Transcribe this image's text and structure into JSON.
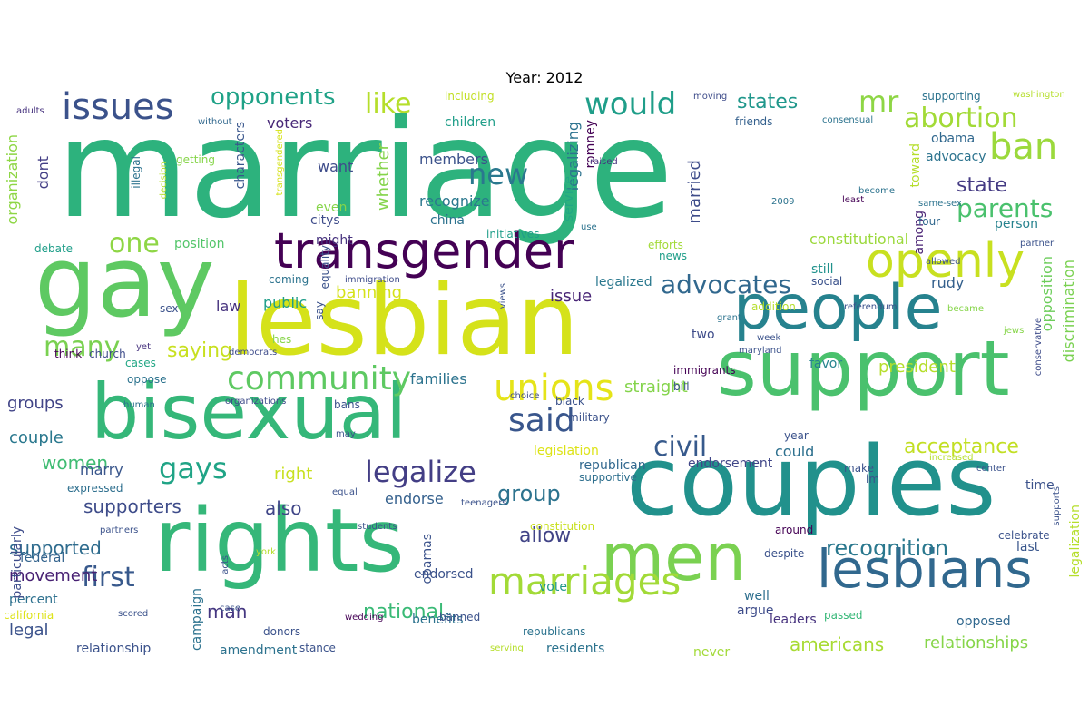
{
  "title": "Year: 2012",
  "words": [
    {
      "text": "marriage",
      "color": "#2db27d"
    },
    {
      "text": "gay",
      "color": "#5ec962"
    },
    {
      "text": "lesbian",
      "color": "#d5e21a"
    },
    {
      "text": "couples",
      "color": "#21918c"
    },
    {
      "text": "rights",
      "color": "#35b779"
    },
    {
      "text": "bisexual",
      "color": "#35b779"
    },
    {
      "text": "support",
      "color": "#4ac16d"
    },
    {
      "text": "people",
      "color": "#26828e"
    },
    {
      "text": "transgender",
      "color": "#440154"
    },
    {
      "text": "men",
      "color": "#7ad151"
    },
    {
      "text": "lesbians",
      "color": "#31688e"
    },
    {
      "text": "openly",
      "color": "#c8e020"
    },
    {
      "text": "marriages",
      "color": "#a2da37"
    },
    {
      "text": "unions",
      "color": "#e5e419"
    },
    {
      "text": "issues",
      "color": "#3b528b"
    },
    {
      "text": "community",
      "color": "#5ec962"
    },
    {
      "text": "ban",
      "color": "#9bd93c"
    },
    {
      "text": "would",
      "color": "#1f9e89"
    },
    {
      "text": "said",
      "color": "#39568c"
    },
    {
      "text": "gays",
      "color": "#20a486"
    },
    {
      "text": "legalize",
      "color": "#433e85"
    },
    {
      "text": "abortion",
      "color": "#a2da37"
    },
    {
      "text": "civil",
      "color": "#375a8c"
    },
    {
      "text": "first",
      "color": "#38598c"
    },
    {
      "text": "many",
      "color": "#7ad151"
    },
    {
      "text": "like",
      "color": "#b5de2b"
    },
    {
      "text": "new",
      "color": "#2a788e"
    },
    {
      "text": "mr",
      "color": "#8ed645"
    },
    {
      "text": "advocates",
      "color": "#31688e"
    },
    {
      "text": "one",
      "color": "#8ed645"
    },
    {
      "text": "parents",
      "color": "#4ac16d"
    },
    {
      "text": "opponents",
      "color": "#1fa287"
    },
    {
      "text": "recognition",
      "color": "#2a788e"
    },
    {
      "text": "acceptance",
      "color": "#c2df23"
    },
    {
      "text": "national",
      "color": "#3aba76"
    },
    {
      "text": "saying",
      "color": "#c8e020"
    },
    {
      "text": "states",
      "color": "#1f978b"
    },
    {
      "text": "state",
      "color": "#443a83"
    },
    {
      "text": "americans",
      "color": "#a8db34"
    },
    {
      "text": "relationships",
      "color": "#86d549"
    },
    {
      "text": "group",
      "color": "#2c738e"
    },
    {
      "text": "allow",
      "color": "#414487"
    },
    {
      "text": "supporters",
      "color": "#3e4c8a"
    },
    {
      "text": "supported",
      "color": "#2f6c8e"
    },
    {
      "text": "women",
      "color": "#3fbc73"
    },
    {
      "text": "man",
      "color": "#453781"
    },
    {
      "text": "movement",
      "color": "#482173"
    },
    {
      "text": "constitutional",
      "color": "#9bd93c"
    },
    {
      "text": "president",
      "color": "#b5de2b"
    },
    {
      "text": "right",
      "color": "#c8e020"
    },
    {
      "text": "banning",
      "color": "#d5e21a"
    },
    {
      "text": "issue",
      "color": "#482576"
    },
    {
      "text": "families",
      "color": "#2c738e"
    },
    {
      "text": "straight",
      "color": "#84d44b"
    },
    {
      "text": "endorse",
      "color": "#34608d"
    },
    {
      "text": "could",
      "color": "#2d708e"
    },
    {
      "text": "also",
      "color": "#404688"
    },
    {
      "text": "legal",
      "color": "#3b528b"
    },
    {
      "text": "couple",
      "color": "#2a788e"
    },
    {
      "text": "groups",
      "color": "#414487"
    },
    {
      "text": "marry",
      "color": "#39568c"
    },
    {
      "text": "law",
      "color": "#46327e"
    },
    {
      "text": "public",
      "color": "#1f9e89"
    },
    {
      "text": "married",
      "color": "#3e4c8a"
    },
    {
      "text": "members",
      "color": "#3b528b"
    },
    {
      "text": "recognize",
      "color": "#2a788e"
    },
    {
      "text": "whether",
      "color": "#84d44b"
    },
    {
      "text": "want",
      "color": "#3e4c8a"
    },
    {
      "text": "voters",
      "color": "#482878"
    },
    {
      "text": "position",
      "color": "#52c569"
    },
    {
      "text": "opposition",
      "color": "#6ccd5a"
    },
    {
      "text": "discrimination",
      "color": "#7ad151"
    },
    {
      "text": "legalization",
      "color": "#b5de2b"
    },
    {
      "text": "organization",
      "color": "#8ed645"
    },
    {
      "text": "dont",
      "color": "#433e85"
    },
    {
      "text": "rudy",
      "color": "#34608d"
    },
    {
      "text": "obama",
      "color": "#31688e"
    },
    {
      "text": "advocacy",
      "color": "#2c738e"
    },
    {
      "text": "toward",
      "color": "#b5de2b"
    },
    {
      "text": "among",
      "color": "#482173"
    },
    {
      "text": "person",
      "color": "#26828e"
    },
    {
      "text": "favor",
      "color": "#25838e"
    },
    {
      "text": "still",
      "color": "#20928c"
    },
    {
      "text": "two",
      "color": "#3e4c8a"
    },
    {
      "text": "time",
      "color": "#3b528b"
    },
    {
      "text": "last",
      "color": "#39568c"
    },
    {
      "text": "well",
      "color": "#2e6f8e"
    },
    {
      "text": "argue",
      "color": "#3e4c8a"
    },
    {
      "text": "opposed",
      "color": "#31688e"
    },
    {
      "text": "leaders",
      "color": "#46327e"
    },
    {
      "text": "passed",
      "color": "#37b878"
    },
    {
      "text": "endorsement",
      "color": "#404688"
    },
    {
      "text": "children",
      "color": "#1f9e89"
    },
    {
      "text": "including",
      "color": "#c2df23"
    },
    {
      "text": "legalizing",
      "color": "#2c728e"
    },
    {
      "text": "romney",
      "color": "#440154"
    },
    {
      "text": "service",
      "color": "#22a785"
    },
    {
      "text": "china",
      "color": "#2c728e"
    },
    {
      "text": "citys",
      "color": "#3e4c8a"
    },
    {
      "text": "might",
      "color": "#46327e"
    },
    {
      "text": "even",
      "color": "#86d549"
    },
    {
      "text": "characters",
      "color": "#39568c"
    },
    {
      "text": "legalized",
      "color": "#2a788e"
    },
    {
      "text": "federal",
      "color": "#33638d"
    },
    {
      "text": "percent",
      "color": "#2d708e"
    },
    {
      "text": "endorsed",
      "color": "#3b528b"
    },
    {
      "text": "vote",
      "color": "#1f978b"
    },
    {
      "text": "obamas",
      "color": "#3b528b"
    },
    {
      "text": "benefits",
      "color": "#2c738e"
    },
    {
      "text": "relationship",
      "color": "#3b528b"
    },
    {
      "text": "amendment",
      "color": "#2c728e"
    },
    {
      "text": "residents",
      "color": "#2c738e"
    },
    {
      "text": "never",
      "color": "#a2da37"
    },
    {
      "text": "republican",
      "color": "#31688e"
    },
    {
      "text": "legislation",
      "color": "#dde318"
    },
    {
      "text": "supportive",
      "color": "#2e6f8e"
    },
    {
      "text": "constitution",
      "color": "#c8e020"
    },
    {
      "text": "republicans",
      "color": "#2c738e"
    },
    {
      "text": "banned",
      "color": "#3b528b"
    },
    {
      "text": "campaign",
      "color": "#2c728e"
    },
    {
      "text": "california",
      "color": "#dde318"
    },
    {
      "text": "scored",
      "color": "#3b528b"
    },
    {
      "text": "partners",
      "color": "#3b528b"
    },
    {
      "text": "expressed",
      "color": "#2e6f8e"
    },
    {
      "text": "particularly",
      "color": "#3e4c8a"
    },
    {
      "text": "human",
      "color": "#2c738e"
    },
    {
      "text": "oppose",
      "color": "#2c738e"
    },
    {
      "text": "think",
      "color": "#440154"
    },
    {
      "text": "yet",
      "color": "#46327e"
    },
    {
      "text": "church",
      "color": "#3e4c8a"
    },
    {
      "text": "cases",
      "color": "#22a785"
    },
    {
      "text": "sex",
      "color": "#3b528b"
    },
    {
      "text": "debate",
      "color": "#1f9e89"
    },
    {
      "text": "adults",
      "color": "#46327e"
    },
    {
      "text": "without",
      "color": "#31688e"
    },
    {
      "text": "getting",
      "color": "#86d549"
    },
    {
      "text": "illegal",
      "color": "#2c738e"
    },
    {
      "text": "decision",
      "color": "#b5de2b"
    },
    {
      "text": "transgendered",
      "color": "#d5e21a"
    },
    {
      "text": "raised",
      "color": "#46327e"
    },
    {
      "text": "moving",
      "color": "#3e4c8a"
    },
    {
      "text": "friends",
      "color": "#34608d"
    },
    {
      "text": "supporting",
      "color": "#2c738e"
    },
    {
      "text": "washington",
      "color": "#b5de2b"
    },
    {
      "text": "consensual",
      "color": "#2c738e"
    },
    {
      "text": "become",
      "color": "#2c738e"
    },
    {
      "text": "least",
      "color": "#440154"
    },
    {
      "text": "same-sex",
      "color": "#2c738e"
    },
    {
      "text": "four",
      "color": "#31688e"
    },
    {
      "text": "2009",
      "color": "#2c738e"
    },
    {
      "text": "use",
      "color": "#2c738e"
    },
    {
      "text": "initiatives",
      "color": "#1f9e89"
    },
    {
      "text": "efforts",
      "color": "#a2da37"
    },
    {
      "text": "news",
      "color": "#1f9e89"
    },
    {
      "text": "social",
      "color": "#3b528b"
    },
    {
      "text": "partner",
      "color": "#3b528b"
    },
    {
      "text": "allowed",
      "color": "#3b528b"
    },
    {
      "text": "equality",
      "color": "#3b528b"
    },
    {
      "text": "coming",
      "color": "#2c738e"
    },
    {
      "text": "immigration",
      "color": "#3e4c8a"
    },
    {
      "text": "views",
      "color": "#3b528b"
    },
    {
      "text": "addition",
      "color": "#b5de2b"
    },
    {
      "text": "grant",
      "color": "#2c738e"
    },
    {
      "text": "referendum",
      "color": "#3b528b"
    },
    {
      "text": "became",
      "color": "#86d549"
    },
    {
      "text": "jews",
      "color": "#86d549"
    },
    {
      "text": "conservative",
      "color": "#3e4c8a"
    },
    {
      "text": "hes",
      "color": "#86d549"
    },
    {
      "text": "democrats",
      "color": "#3e4c8a"
    },
    {
      "text": "say",
      "color": "#3b528b"
    },
    {
      "text": "week",
      "color": "#3b528b"
    },
    {
      "text": "maryland",
      "color": "#3b528b"
    },
    {
      "text": "immigrants",
      "color": "#440154"
    },
    {
      "text": "black",
      "color": "#3b528b"
    },
    {
      "text": "choice",
      "color": "#3e4c8a"
    },
    {
      "text": "bill",
      "color": "#3b528b"
    },
    {
      "text": "military",
      "color": "#3b528b"
    },
    {
      "text": "bans",
      "color": "#3b528b"
    },
    {
      "text": "organizations",
      "color": "#3e4c8a"
    },
    {
      "text": "year",
      "color": "#3b528b"
    },
    {
      "text": "make",
      "color": "#3b528b"
    },
    {
      "text": "im",
      "color": "#3b528b"
    },
    {
      "text": "increased",
      "color": "#b5de2b"
    },
    {
      "text": "center",
      "color": "#3b528b"
    },
    {
      "text": "supports",
      "color": "#3b528b"
    },
    {
      "text": "celebrate",
      "color": "#3b528b"
    },
    {
      "text": "around",
      "color": "#440154"
    },
    {
      "text": "despite",
      "color": "#3b528b"
    },
    {
      "text": "equal",
      "color": "#3b528b"
    },
    {
      "text": "students",
      "color": "#3b528b"
    },
    {
      "text": "teenagers",
      "color": "#3b528b"
    },
    {
      "text": "york",
      "color": "#b5de2b"
    },
    {
      "text": "acts",
      "color": "#3b528b"
    },
    {
      "text": "case",
      "color": "#3b528b"
    },
    {
      "text": "donors",
      "color": "#3b528b"
    },
    {
      "text": "stance",
      "color": "#3b528b"
    },
    {
      "text": "wedding",
      "color": "#440154"
    },
    {
      "text": "serving",
      "color": "#b5de2b"
    },
    {
      "text": "may",
      "color": "#3b528b"
    },
    {
      "text": "came",
      "color": "#d5e21a"
    }
  ]
}
